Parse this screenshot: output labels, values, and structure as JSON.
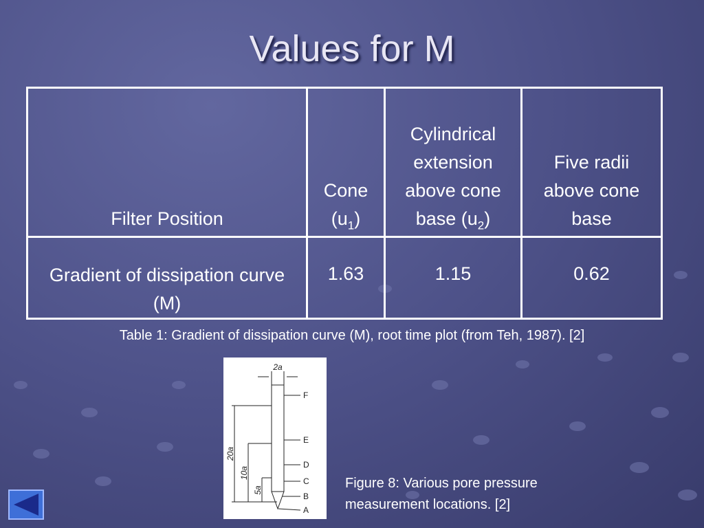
{
  "title": "Values for M",
  "table": {
    "header": [
      "Filter Position",
      {
        "text": "Cone (u",
        "sub": "1",
        "end": ")"
      },
      {
        "text": "Cylindrical extension above cone base (u",
        "sub": "2",
        "end": ")"
      },
      "Five radii above cone base"
    ],
    "rows": [
      [
        "Gradient of dissipation curve (M)",
        "1.63",
        "1.15",
        "0.62"
      ]
    ]
  },
  "table_caption": "Table 1: Gradient of dissipation curve (M), root time plot (from Teh, 1987). [2]",
  "figure": {
    "width_label": "2a",
    "points": [
      "F",
      "E",
      "D",
      "C",
      "B",
      "A"
    ],
    "dimensions": [
      "20a",
      "10a",
      "5a"
    ],
    "caption": "Figure 8: Various pore pressure measurement locations. [2]"
  }
}
